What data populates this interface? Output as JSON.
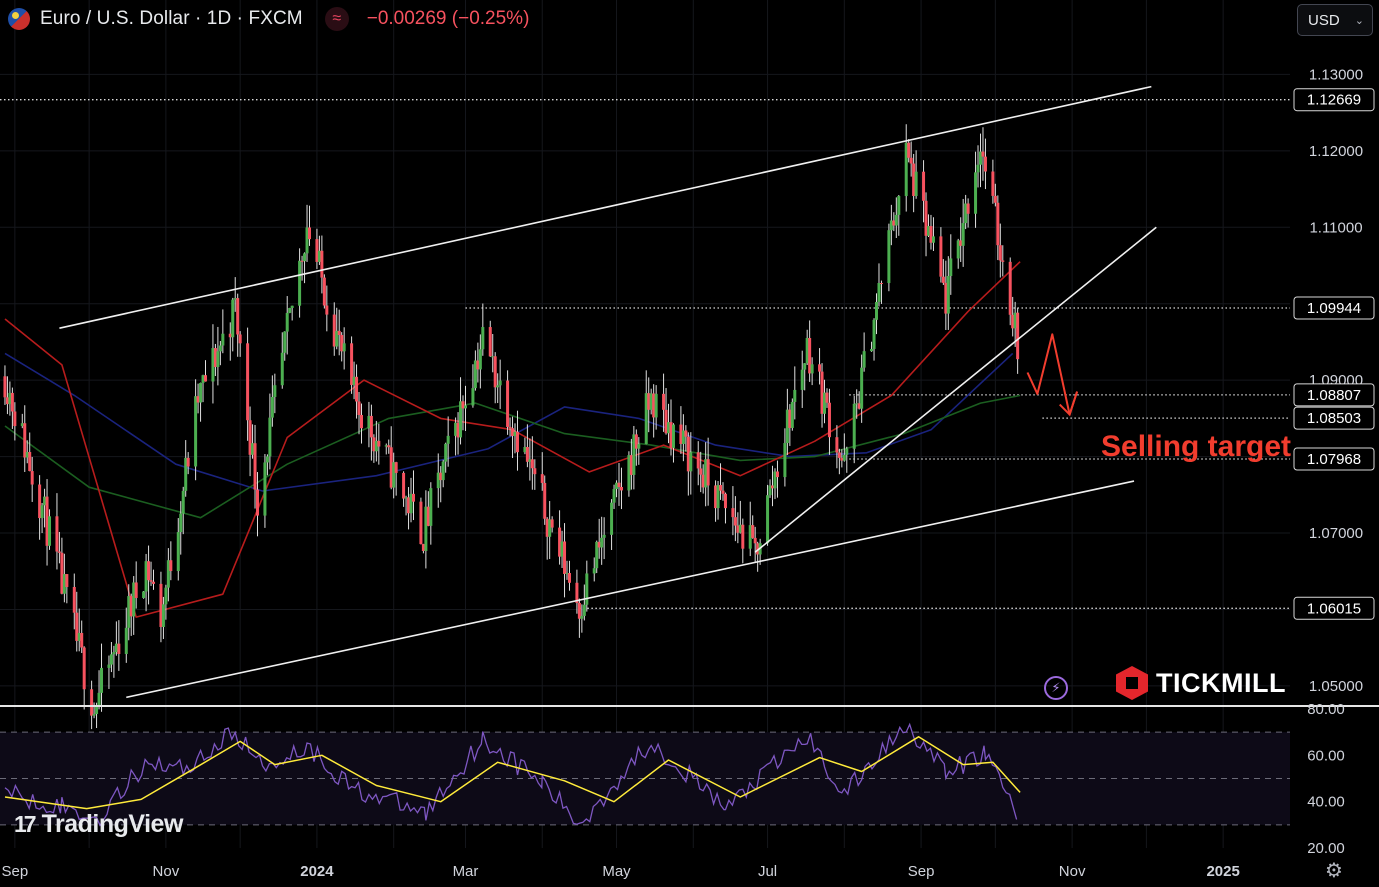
{
  "header": {
    "symbol": "Euro / U.S. Dollar · 1D · FXCM",
    "change": "−0.00269 (−0.25%)",
    "flag_icon": "eurusd-flag-icon",
    "indicator_icon": "wave-icon"
  },
  "currency_select": {
    "value": "USD",
    "icon": "chevron-down-icon"
  },
  "branding": {
    "tradingview": "TradingView",
    "tickmill": "TICKMILL"
  },
  "colors": {
    "background": "#000000",
    "up_candle": "#4caf50",
    "down_candle": "#f7525f",
    "ema_fast": "#b71c1c",
    "ema_mid": "#1b5e20",
    "ema_slow": "#1a237e",
    "rsi_line": "#7e57c2",
    "rsi_signal": "#ffeb3b",
    "annotation": "#f23d2e"
  },
  "chart_data": [
    {
      "type": "candlestick",
      "name": "price",
      "xlabel": "",
      "ylabel": "",
      "x_ticks": [
        "Sep",
        "Nov",
        "2024",
        "Mar",
        "May",
        "Jul",
        "Sep",
        "Nov",
        "2025"
      ],
      "y_ticks": [
        "1.13000",
        "1.12000",
        "1.11000",
        "1.10000",
        "1.09000",
        "1.08000",
        "1.07000",
        "1.06000",
        "1.05000"
      ],
      "ylim": [
        1.0475,
        1.1345
      ],
      "xlim": [
        "2023-08-26",
        "2025-01-28"
      ],
      "levels": [
        {
          "label": "1.12669",
          "value": 1.12669
        },
        {
          "label": "1.09944",
          "value": 1.09944
        },
        {
          "label": "1.08807",
          "value": 1.08807
        },
        {
          "label": "1.08503",
          "value": 1.08503
        },
        {
          "label": "1.07968",
          "value": 1.07968
        },
        {
          "label": "1.06015",
          "value": 1.06015
        }
      ],
      "trendlines": [
        {
          "from": [
            "2023-09-19",
            1.0968
          ],
          "to": [
            "2024-12-03",
            1.1284
          ]
        },
        {
          "from": [
            "2023-10-16",
            1.0485
          ],
          "to": [
            "2024-11-26",
            1.0768
          ]
        },
        {
          "from": [
            "2024-06-26",
            1.0675
          ],
          "to": [
            "2024-12-05",
            1.11
          ]
        }
      ],
      "annotation": {
        "text": "Selling target",
        "arrow_path": [
          [
            "2024-10-14",
            1.091
          ],
          [
            "2024-10-18",
            1.0882
          ],
          [
            "2024-10-24",
            1.096
          ],
          [
            "2024-10-31",
            1.0855
          ],
          [
            "2024-11-03",
            1.0885
          ]
        ]
      },
      "path": [
        [
          "2023-08-28",
          1.0905
        ],
        [
          "2023-09-12",
          1.0735
        ],
        [
          "2023-10-03",
          1.047
        ],
        [
          "2023-10-24",
          1.066
        ],
        [
          "2023-10-30",
          1.059
        ],
        [
          "2023-11-14",
          1.0875
        ],
        [
          "2023-11-29",
          1.0995
        ],
        [
          "2023-12-08",
          1.0745
        ],
        [
          "2023-12-28",
          1.1105
        ],
        [
          "2024-01-15",
          1.0885
        ],
        [
          "2024-02-13",
          1.07
        ],
        [
          "2024-03-08",
          1.0955
        ],
        [
          "2024-04-16",
          1.0605
        ],
        [
          "2024-05-15",
          1.0875
        ],
        [
          "2024-06-26",
          1.0675
        ],
        [
          "2024-07-17",
          1.0945
        ],
        [
          "2024-08-01",
          1.0785
        ],
        [
          "2024-08-26",
          1.1195
        ],
        [
          "2024-09-11",
          1.1005
        ],
        [
          "2024-09-25",
          1.121
        ],
        [
          "2024-10-11",
          1.0935
        ]
      ],
      "ema_fast": [
        [
          "2023-08-28",
          1.098
        ],
        [
          "2023-09-20",
          1.092
        ],
        [
          "2023-10-20",
          1.059
        ],
        [
          "2023-11-24",
          1.062
        ],
        [
          "2023-12-20",
          1.0825
        ],
        [
          "2024-01-20",
          1.09
        ],
        [
          "2024-02-20",
          1.085
        ],
        [
          "2024-03-20",
          1.0835
        ],
        [
          "2024-04-20",
          1.078
        ],
        [
          "2024-05-20",
          1.0815
        ],
        [
          "2024-06-20",
          1.0775
        ],
        [
          "2024-07-20",
          1.082
        ],
        [
          "2024-08-20",
          1.088
        ],
        [
          "2024-09-20",
          1.099
        ],
        [
          "2024-10-11",
          1.1055
        ]
      ],
      "ema_mid": [
        [
          "2023-08-28",
          1.084
        ],
        [
          "2023-10-01",
          1.076
        ],
        [
          "2023-11-15",
          1.072
        ],
        [
          "2023-12-20",
          1.079
        ],
        [
          "2024-01-30",
          1.085
        ],
        [
          "2024-03-05",
          1.087
        ],
        [
          "2024-04-10",
          1.083
        ],
        [
          "2024-05-15",
          1.0815
        ],
        [
          "2024-06-20",
          1.0795
        ],
        [
          "2024-07-20",
          1.08
        ],
        [
          "2024-08-25",
          1.083
        ],
        [
          "2024-09-25",
          1.087
        ],
        [
          "2024-10-11",
          1.088
        ]
      ],
      "ema_slow": [
        [
          "2023-08-28",
          1.0935
        ],
        [
          "2023-09-25",
          1.088
        ],
        [
          "2023-11-05",
          1.079
        ],
        [
          "2023-12-10",
          1.0755
        ],
        [
          "2024-01-25",
          1.0775
        ],
        [
          "2024-03-10",
          1.081
        ],
        [
          "2024-04-10",
          1.0865
        ],
        [
          "2024-05-10",
          1.085
        ],
        [
          "2024-06-10",
          1.0815
        ],
        [
          "2024-07-10",
          1.08
        ],
        [
          "2024-08-10",
          1.0805
        ],
        [
          "2024-09-05",
          1.0835
        ],
        [
          "2024-10-08",
          1.0935
        ]
      ]
    },
    {
      "type": "line",
      "name": "RSI",
      "y_ticks": [
        "80.00",
        "60.00",
        "40.00",
        "20.00"
      ],
      "ylim": [
        20,
        80
      ],
      "bands": [
        70,
        50,
        30
      ],
      "rsi_path": [
        [
          "2023-08-28",
          44
        ],
        [
          "2023-09-20",
          38
        ],
        [
          "2023-10-04",
          32
        ],
        [
          "2023-10-25",
          58
        ],
        [
          "2023-11-08",
          54
        ],
        [
          "2023-11-29",
          70
        ],
        [
          "2023-12-10",
          55
        ],
        [
          "2023-12-28",
          64
        ],
        [
          "2024-01-15",
          46
        ],
        [
          "2024-02-14",
          35
        ],
        [
          "2024-03-08",
          67
        ],
        [
          "2024-04-01",
          48
        ],
        [
          "2024-04-16",
          30
        ],
        [
          "2024-05-15",
          66
        ],
        [
          "2024-06-14",
          37
        ],
        [
          "2024-07-17",
          68
        ],
        [
          "2024-08-01",
          43
        ],
        [
          "2024-08-26",
          74
        ],
        [
          "2024-09-11",
          52
        ],
        [
          "2024-09-27",
          61
        ],
        [
          "2024-10-11",
          33
        ]
      ],
      "signal_path": [
        [
          "2023-08-28",
          42
        ],
        [
          "2023-09-30",
          37
        ],
        [
          "2023-10-22",
          41
        ],
        [
          "2023-11-12",
          54
        ],
        [
          "2023-12-01",
          66
        ],
        [
          "2023-12-15",
          56
        ],
        [
          "2024-01-03",
          60
        ],
        [
          "2024-01-25",
          47
        ],
        [
          "2024-02-20",
          40
        ],
        [
          "2024-03-14",
          57
        ],
        [
          "2024-04-10",
          49
        ],
        [
          "2024-04-30",
          40
        ],
        [
          "2024-05-22",
          58
        ],
        [
          "2024-06-20",
          42
        ],
        [
          "2024-07-22",
          59
        ],
        [
          "2024-08-08",
          53
        ],
        [
          "2024-08-31",
          68
        ],
        [
          "2024-09-18",
          56
        ],
        [
          "2024-09-30",
          57
        ],
        [
          "2024-10-11",
          44
        ]
      ]
    }
  ]
}
